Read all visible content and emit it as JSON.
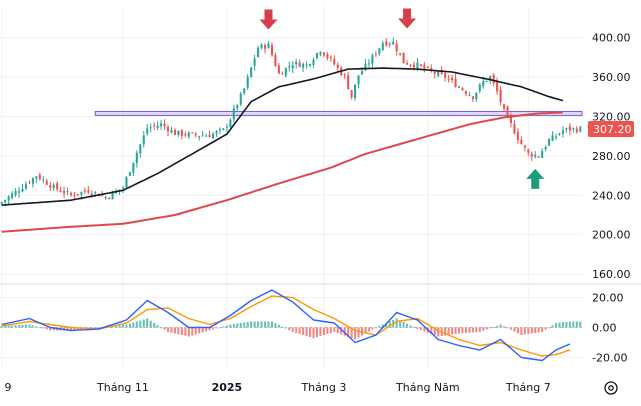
{
  "chart_data": [
    {
      "type": "candlestick",
      "title": "",
      "price_axis_ticks": [
        400,
        360,
        320,
        280,
        240,
        200,
        160
      ],
      "price_axis_tick_labels": [
        "400.00",
        "360.00",
        "320.00",
        "280.00",
        "240.00",
        "200.00",
        "160.00"
      ],
      "ylim": [
        152,
        432
      ],
      "last_price": 307.2,
      "last_price_label": "307.20",
      "resistance_band": [
        321,
        325
      ],
      "x_axis_tick_labels": [
        "9",
        "Tháng 11",
        "2025",
        "Tháng 3",
        "Tháng Năm",
        "Tháng 7"
      ],
      "x_axis_tick_positions": [
        0,
        35,
        65,
        93,
        123,
        152
      ],
      "session_count": 168,
      "close_path": [
        [
          0,
          233
        ],
        [
          5,
          246
        ],
        [
          10,
          260
        ],
        [
          15,
          248
        ],
        [
          20,
          240
        ],
        [
          25,
          245
        ],
        [
          30,
          238
        ],
        [
          35,
          248
        ],
        [
          38,
          275
        ],
        [
          42,
          308
        ],
        [
          46,
          312
        ],
        [
          50,
          303
        ],
        [
          55,
          301
        ],
        [
          60,
          301
        ],
        [
          64,
          306
        ],
        [
          66,
          318
        ],
        [
          70,
          348
        ],
        [
          74,
          390
        ],
        [
          77,
          392
        ],
        [
          80,
          363
        ],
        [
          84,
          374
        ],
        [
          88,
          372
        ],
        [
          92,
          388
        ],
        [
          96,
          373
        ],
        [
          99,
          360
        ],
        [
          101,
          340
        ],
        [
          103,
          362
        ],
        [
          106,
          375
        ],
        [
          110,
          395
        ],
        [
          113,
          395
        ],
        [
          116,
          375
        ],
        [
          120,
          372
        ],
        [
          124,
          365
        ],
        [
          128,
          360
        ],
        [
          132,
          350
        ],
        [
          136,
          340
        ],
        [
          139,
          355
        ],
        [
          141,
          360
        ],
        [
          143,
          345
        ],
        [
          145,
          325
        ],
        [
          148,
          305
        ],
        [
          150,
          292
        ],
        [
          152,
          282
        ],
        [
          155,
          280
        ],
        [
          158,
          296
        ],
        [
          160,
          300
        ],
        [
          162,
          306
        ],
        [
          164,
          307
        ]
      ],
      "sma_long_path": [
        [
          0,
          230
        ],
        [
          20,
          235
        ],
        [
          35,
          245
        ],
        [
          45,
          262
        ],
        [
          55,
          282
        ],
        [
          65,
          302
        ],
        [
          72,
          335
        ],
        [
          80,
          350
        ],
        [
          90,
          358
        ],
        [
          100,
          368
        ],
        [
          110,
          369
        ],
        [
          120,
          368
        ],
        [
          130,
          365
        ],
        [
          140,
          358
        ],
        [
          150,
          350
        ],
        [
          158,
          340
        ],
        [
          162,
          336
        ]
      ],
      "sma_trend_path": [
        [
          0,
          203
        ],
        [
          20,
          208
        ],
        [
          35,
          211
        ],
        [
          50,
          220
        ],
        [
          65,
          235
        ],
        [
          80,
          252
        ],
        [
          95,
          268
        ],
        [
          105,
          282
        ],
        [
          115,
          292
        ],
        [
          125,
          302
        ],
        [
          135,
          312
        ],
        [
          145,
          319
        ],
        [
          155,
          323
        ],
        [
          162,
          324
        ]
      ],
      "down_arrows_at": [
        [
          77,
          400
        ],
        [
          117,
          401
        ]
      ],
      "up_arrow_at": [
        [
          154,
          281
        ]
      ]
    },
    {
      "type": "macd",
      "axis_ticks": [
        20,
        0,
        -20
      ],
      "axis_tick_labels": [
        "20.00",
        "0.00",
        "-20.00"
      ],
      "ylim": [
        -27,
        27
      ],
      "macd_path": [
        [
          0,
          2
        ],
        [
          8,
          6
        ],
        [
          14,
          0
        ],
        [
          20,
          -2
        ],
        [
          28,
          -1
        ],
        [
          36,
          5
        ],
        [
          42,
          18
        ],
        [
          48,
          10
        ],
        [
          54,
          0
        ],
        [
          60,
          0
        ],
        [
          66,
          8
        ],
        [
          72,
          18
        ],
        [
          78,
          25
        ],
        [
          84,
          17
        ],
        [
          90,
          5
        ],
        [
          96,
          3
        ],
        [
          102,
          -10
        ],
        [
          108,
          -5
        ],
        [
          114,
          10
        ],
        [
          120,
          5
        ],
        [
          126,
          -8
        ],
        [
          132,
          -12
        ],
        [
          138,
          -15
        ],
        [
          144,
          -8
        ],
        [
          150,
          -20
        ],
        [
          156,
          -22
        ],
        [
          160,
          -15
        ],
        [
          164,
          -11
        ]
      ],
      "signal_path": [
        [
          0,
          1
        ],
        [
          8,
          4
        ],
        [
          14,
          2
        ],
        [
          20,
          0
        ],
        [
          28,
          -1
        ],
        [
          36,
          3
        ],
        [
          42,
          12
        ],
        [
          48,
          13
        ],
        [
          54,
          6
        ],
        [
          60,
          2
        ],
        [
          66,
          6
        ],
        [
          72,
          14
        ],
        [
          78,
          21
        ],
        [
          84,
          20
        ],
        [
          90,
          12
        ],
        [
          96,
          6
        ],
        [
          102,
          -2
        ],
        [
          108,
          -5
        ],
        [
          114,
          4
        ],
        [
          120,
          6
        ],
        [
          126,
          -2
        ],
        [
          132,
          -8
        ],
        [
          138,
          -12
        ],
        [
          144,
          -10
        ],
        [
          150,
          -15
        ],
        [
          156,
          -19
        ],
        [
          160,
          -18
        ],
        [
          164,
          -15
        ]
      ]
    }
  ],
  "colors": {
    "bullish": "#26a69a",
    "bearish": "#ef5350",
    "sma_long": "#131722",
    "sma_trend": "#e0464b",
    "band_fill": "#c9b8ec",
    "band_border": "#7b5fc8",
    "macd_line": "#2962ff",
    "signal_line": "#ff9800",
    "arrow_down": "#d43f4b",
    "arrow_up": "#1a9e7e",
    "price_badge": "#ef5350",
    "grid": "#eef0f3",
    "axis_text": "#131722"
  }
}
